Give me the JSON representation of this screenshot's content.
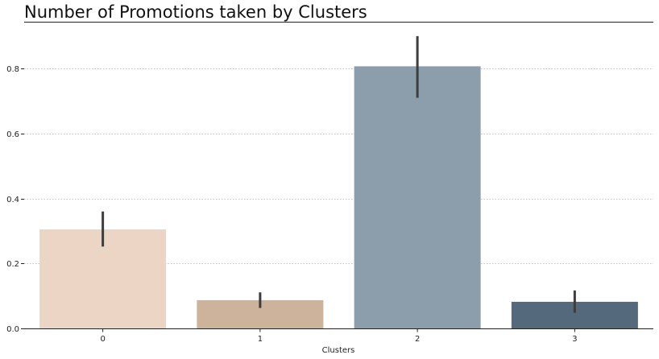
{
  "chart_data": {
    "type": "bar",
    "title": "Number of Promotions taken by Clusters",
    "xlabel": "Clusters",
    "ylabel": "",
    "categories": [
      "0",
      "1",
      "2",
      "3"
    ],
    "values": [
      0.305,
      0.087,
      0.807,
      0.082
    ],
    "error_bars": [
      {
        "low": 0.252,
        "high": 0.36
      },
      {
        "low": 0.063,
        "high": 0.111
      },
      {
        "low": 0.71,
        "high": 0.9
      },
      {
        "low": 0.048,
        "high": 0.117
      }
    ],
    "colors": [
      "#ecd5c5",
      "#cdb39c",
      "#8c9eab",
      "#55697c"
    ],
    "error_color": "#3d3d3d",
    "ylim": [
      0,
      0.9
    ],
    "yticks": [
      "0.0",
      "0.2",
      "0.4",
      "0.6",
      "0.8"
    ],
    "grid": "horizontal-dotted",
    "legend": "none"
  }
}
